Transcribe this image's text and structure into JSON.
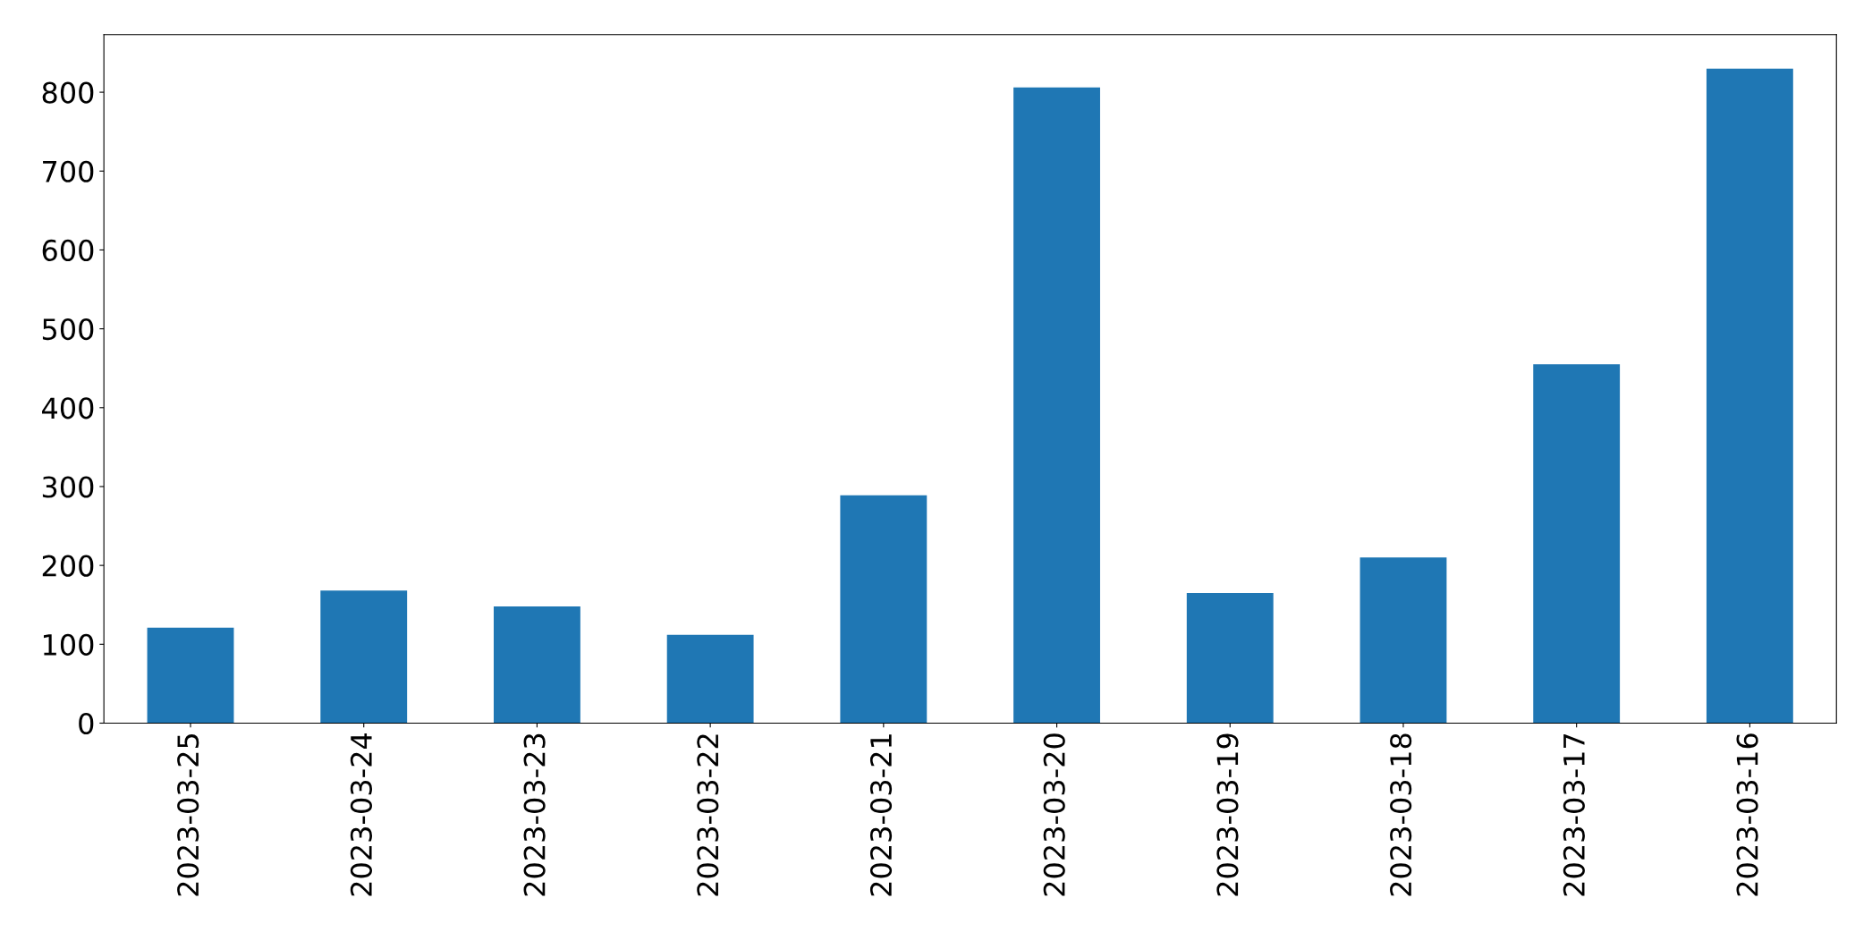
{
  "chart_data": {
    "type": "bar",
    "categories": [
      "2023-03-25",
      "2023-03-24",
      "2023-03-23",
      "2023-03-22",
      "2023-03-21",
      "2023-03-20",
      "2023-03-19",
      "2023-03-18",
      "2023-03-17",
      "2023-03-16"
    ],
    "values": [
      121,
      168,
      148,
      112,
      289,
      806,
      165,
      210,
      455,
      830
    ],
    "color": "#1f77b4",
    "ylim": [
      0,
      873
    ],
    "yticks": [
      0,
      100,
      200,
      300,
      400,
      500,
      600,
      700,
      800
    ],
    "grid": false,
    "legend": false
  }
}
